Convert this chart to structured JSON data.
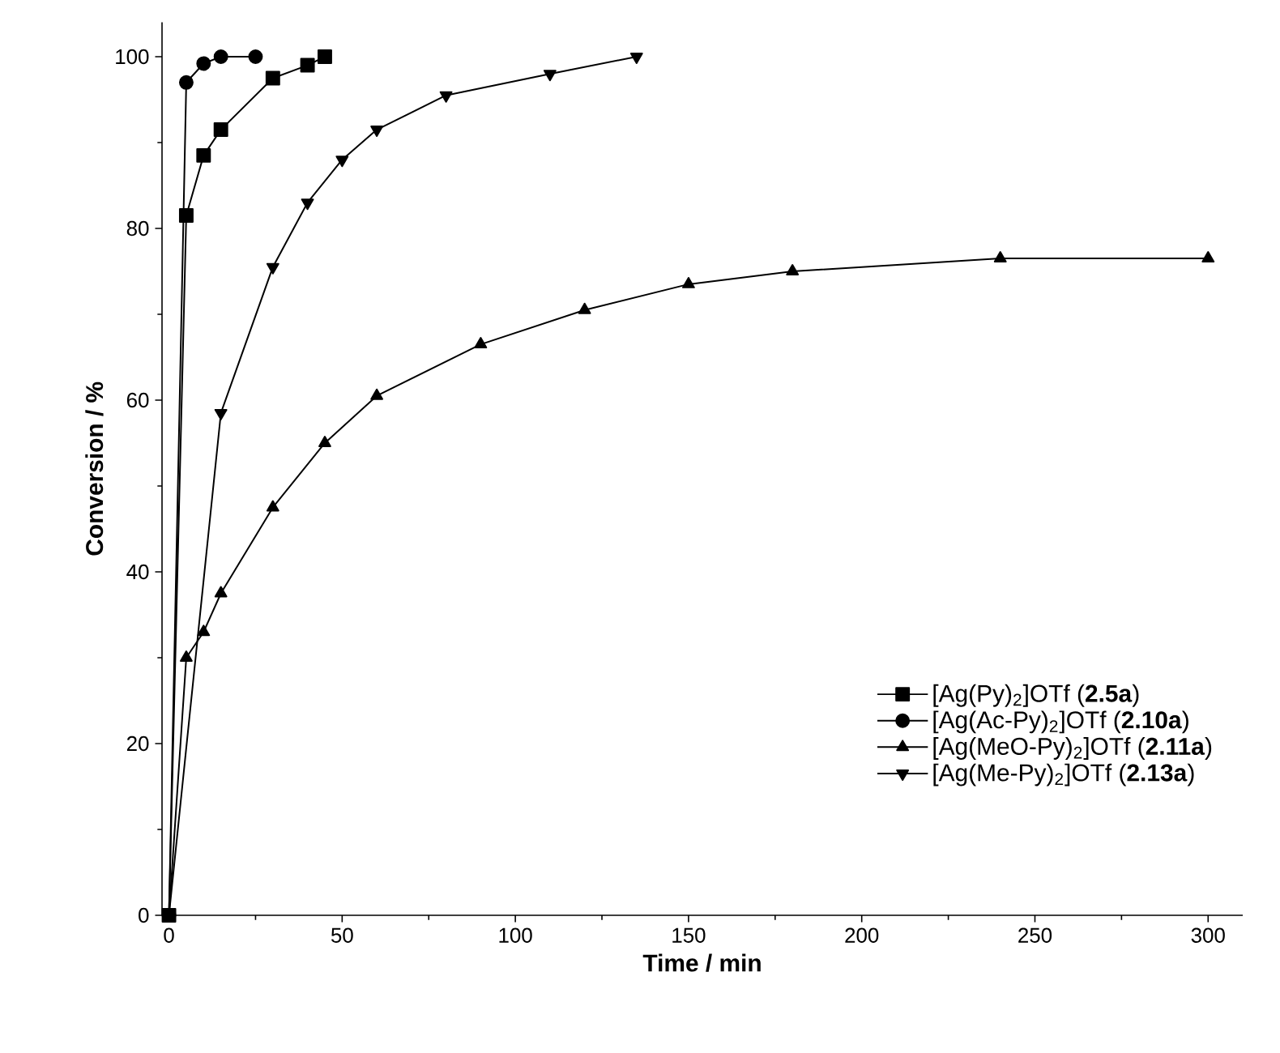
{
  "chart_data": {
    "type": "line",
    "xlabel": "Time / min",
    "ylabel": "Conversion / %",
    "xlim": [
      -2,
      310
    ],
    "ylim": [
      0,
      104
    ],
    "xticks": [
      0,
      50,
      100,
      150,
      200,
      250,
      300
    ],
    "yticks": [
      0,
      20,
      40,
      60,
      80,
      100
    ],
    "grid": false,
    "legend": "bottom right",
    "line_style": "solid",
    "series": [
      {
        "name": "[Ag(Py)$_{2}$]OTf (**2.5a**)",
        "color": "#000000",
        "marker": "square",
        "x": [
          0,
          5,
          10,
          15,
          30,
          40,
          45
        ],
        "values": [
          0,
          81.5,
          88.5,
          91.5,
          97.5,
          99,
          100
        ]
      },
      {
        "name": "[Ag(Ac-Py)$_{2}$]OTf (**2.10a**)",
        "color": "#000000",
        "marker": "circle",
        "x": [
          0,
          5,
          10,
          15,
          25
        ],
        "values": [
          0,
          97,
          99.2,
          100,
          100
        ]
      },
      {
        "name": "[Ag(MeO-Py)$_{2}$]OTf (**2.11a**)",
        "color": "#000000",
        "marker": "triangle",
        "x": [
          0,
          5,
          10,
          15,
          30,
          45,
          60,
          90,
          120,
          150,
          180,
          240,
          300
        ],
        "values": [
          0,
          30,
          33,
          37.5,
          47.5,
          55,
          60.5,
          66.5,
          70.5,
          73.5,
          75,
          76.5,
          76.5
        ]
      },
      {
        "name": "[Ag(Me-Py)$_{2}$]OTf (**2.13a**)",
        "color": "#000000",
        "marker": "triangle down",
        "x": [
          0,
          15,
          30,
          40,
          50,
          60,
          80,
          110,
          135
        ],
        "values": [
          0,
          58.5,
          75.5,
          83,
          88,
          91.5,
          95.5,
          98,
          100
        ]
      }
    ]
  }
}
